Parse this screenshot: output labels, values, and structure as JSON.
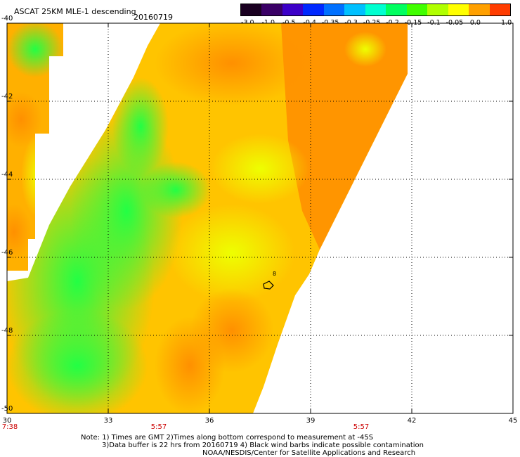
{
  "title": "ASCAT 25KM MLE-1 descending",
  "date": "20160719",
  "colorbar": {
    "ticks": [
      "-3.0",
      "-1.0",
      "-0.5",
      "-0.4",
      "-0.35",
      "-0.3",
      "-0.25",
      "-0.2",
      "-0.15",
      "-0.1",
      "-0.05",
      "0.0",
      "1.0"
    ],
    "colors": [
      "#1a0021",
      "#3a0066",
      "#3c00c8",
      "#0028ff",
      "#0070ff",
      "#00c0ff",
      "#00ffd0",
      "#00ff60",
      "#40ff00",
      "#b0ff00",
      "#ffff00",
      "#ffa000",
      "#ff3c00"
    ]
  },
  "map": {
    "lat_ticks": [
      "-40",
      "-42",
      "-44",
      "-46",
      "-48",
      "-50"
    ],
    "lon_ticks": [
      "30",
      "33",
      "36",
      "39",
      "42",
      "45"
    ],
    "time_labels": [
      {
        "lon": "30",
        "time": "7:38"
      },
      {
        "lon": "34.5",
        "time": "5:57"
      },
      {
        "lon": "40.5",
        "time": "5:57"
      }
    ],
    "contamination_marker": "8"
  },
  "notes": [
    "Note: 1) Times are GMT 2)Times along bottom correspond to measurement at -45S",
    "3)Data buffer is 22 hrs from 20160719 4) Black wind barbs indicate possible contamination",
    "NOAA/NESDIS/Center for Satellite Applications and Research"
  ]
}
